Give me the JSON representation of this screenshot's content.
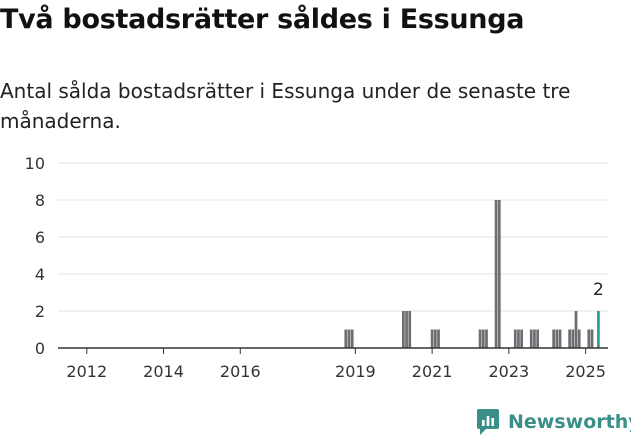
{
  "title": "Två bostadsrätter såldes i Essunga",
  "subtitle": "Antal sålda bostadsrätter i Essunga under de senaste tre månaderna.",
  "brand": {
    "name": "Newsworthy",
    "icon": "newsworthy-logo-icon",
    "color": "#3a8f89"
  },
  "chart_data": {
    "type": "bar",
    "title": "Två bostadsrätter såldes i Essunga",
    "subtitle": "Antal sålda bostadsrätter i Essunga under de senaste tre månaderna.",
    "xlabel": "",
    "ylabel": "",
    "ylim": [
      0,
      10
    ],
    "yticks": [
      0,
      2,
      4,
      6,
      8,
      10
    ],
    "xlim": [
      "2011-04",
      "2025-08"
    ],
    "xticks": [
      "2012",
      "2014",
      "2016",
      "2019",
      "2021",
      "2023",
      "2025"
    ],
    "grid": true,
    "colors": {
      "bar": "#6d6d72",
      "highlight": "#2a9d8f",
      "grid": "#e3e3e3",
      "axis": "#333333"
    },
    "series": [
      {
        "values": [
          {
            "x": "2018-10",
            "y": 1
          },
          {
            "x": "2018-11",
            "y": 1
          },
          {
            "x": "2018-12",
            "y": 1
          },
          {
            "x": "2020-04",
            "y": 2
          },
          {
            "x": "2020-05",
            "y": 2
          },
          {
            "x": "2020-06",
            "y": 2
          },
          {
            "x": "2021-01",
            "y": 1
          },
          {
            "x": "2021-02",
            "y": 1
          },
          {
            "x": "2021-03",
            "y": 1
          },
          {
            "x": "2022-04",
            "y": 1
          },
          {
            "x": "2022-05",
            "y": 1
          },
          {
            "x": "2022-06",
            "y": 1
          },
          {
            "x": "2022-09",
            "y": 8
          },
          {
            "x": "2022-10",
            "y": 8
          },
          {
            "x": "2023-03",
            "y": 1
          },
          {
            "x": "2023-04",
            "y": 1
          },
          {
            "x": "2023-05",
            "y": 1
          },
          {
            "x": "2023-08",
            "y": 1
          },
          {
            "x": "2023-09",
            "y": 1
          },
          {
            "x": "2023-10",
            "y": 1
          },
          {
            "x": "2024-03",
            "y": 1
          },
          {
            "x": "2024-04",
            "y": 1
          },
          {
            "x": "2024-05",
            "y": 1
          },
          {
            "x": "2024-08",
            "y": 1
          },
          {
            "x": "2024-09",
            "y": 1
          },
          {
            "x": "2024-10",
            "y": 2
          },
          {
            "x": "2024-11",
            "y": 1
          },
          {
            "x": "2025-02",
            "y": 1
          },
          {
            "x": "2025-03",
            "y": 1
          },
          {
            "x": "2025-05",
            "y": 2
          }
        ]
      }
    ],
    "highlight": {
      "x": "2025-05",
      "y": 2,
      "label": "2"
    }
  }
}
